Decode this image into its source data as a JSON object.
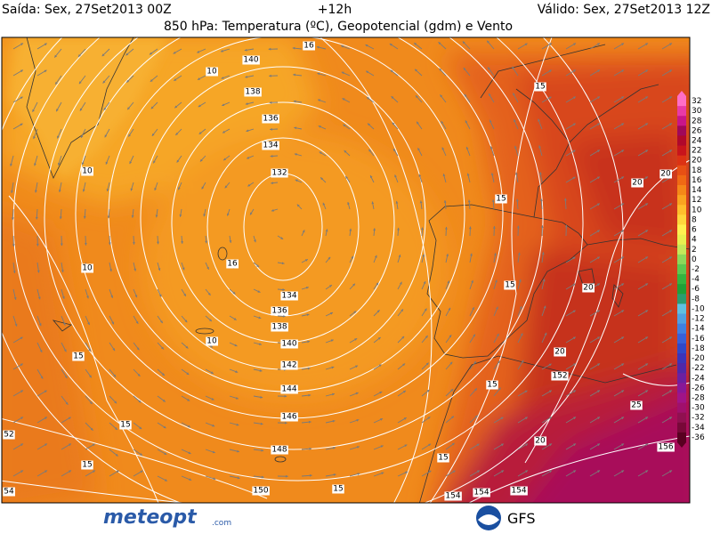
{
  "header": {
    "left": "Saída: Sex, 27Set2013 00Z",
    "center": "+12h",
    "right": "Válido: Sex, 27Set2013 12Z",
    "title": "850 hPa: Temperatura (ºC), Geopotencial (gdm) e Vento"
  },
  "map": {
    "geopotential_labels": [
      "140",
      "138",
      "136",
      "134",
      "132",
      "134",
      "136",
      "138",
      "140",
      "142",
      "144",
      "146",
      "148",
      "150",
      "152",
      "154",
      "154",
      "154",
      "156",
      "52",
      "54"
    ],
    "temperature_labels": [
      "16",
      "10",
      "15",
      "10",
      "20",
      "20",
      "15",
      "16",
      "10",
      "15",
      "20",
      "10",
      "15",
      "20",
      "15",
      "25",
      "15",
      "20",
      "15",
      "15",
      "15"
    ]
  },
  "colorbar": {
    "labels": [
      "32",
      "30",
      "28",
      "26",
      "24",
      "22",
      "20",
      "18",
      "16",
      "14",
      "12",
      "10",
      "8",
      "6",
      "4",
      "2",
      "0",
      "-2",
      "-4",
      "-6",
      "-8",
      "-10",
      "-12",
      "-14",
      "-16",
      "-18",
      "-20",
      "-22",
      "-24",
      "-26",
      "-28",
      "-30",
      "-32",
      "-34",
      "-36"
    ]
  },
  "footer": {
    "logo_text": "meteopt",
    "logo_suffix": ".com",
    "model": "GFS"
  }
}
